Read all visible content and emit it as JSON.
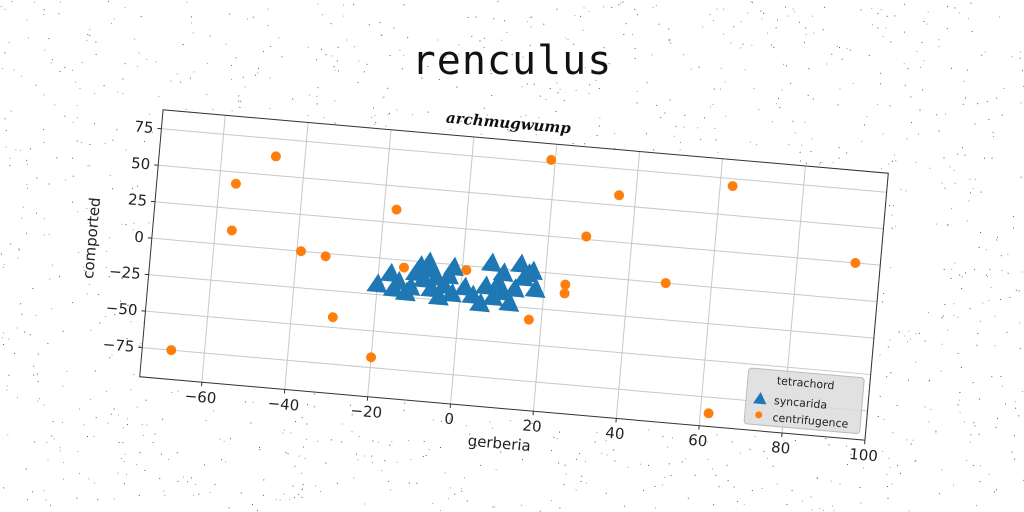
{
  "chart_data": {
    "type": "scatter",
    "title": "renculus",
    "subtitle": "archmugwump",
    "xlabel": "gerberia",
    "ylabel": "comported",
    "xlim": [
      -75,
      100
    ],
    "ylim": [
      -95,
      88
    ],
    "xticks": [
      -60,
      -40,
      -20,
      0,
      20,
      40,
      60,
      80,
      100
    ],
    "yticks": [
      75,
      50,
      25,
      0,
      -25,
      -50,
      -75
    ],
    "xtick_labels": [
      "−60",
      "−40",
      "−20",
      "0",
      "20",
      "40",
      "60",
      "80",
      "100"
    ],
    "ytick_labels": [
      "75",
      "50",
      "25",
      "0",
      "−25",
      "−50",
      "−75"
    ],
    "grid": true,
    "rotation_deg": 5,
    "legend": {
      "title": "tetrachord",
      "position": "bottom-right",
      "entries": [
        "syncarida",
        "centrifugence"
      ]
    },
    "series": [
      {
        "name": "syncarida",
        "marker": "triangle",
        "color": "#1f77b4",
        "points": [
          [
            -20,
            -18
          ],
          [
            -17,
            -10
          ],
          [
            -16,
            -20
          ],
          [
            -15,
            -15
          ],
          [
            -13,
            -22
          ],
          [
            -12,
            -18
          ],
          [
            -11,
            -8
          ],
          [
            -10,
            -3
          ],
          [
            -9,
            -12
          ],
          [
            -8,
            0
          ],
          [
            -7,
            -5
          ],
          [
            -7,
            -18
          ],
          [
            -6,
            -10
          ],
          [
            -5,
            -23
          ],
          [
            -4,
            -15
          ],
          [
            -3,
            -8
          ],
          [
            -2,
            -2
          ],
          [
            -2,
            -20
          ],
          [
            1,
            -15
          ],
          [
            3,
            -20
          ],
          [
            5,
            -25
          ],
          [
            6,
            -13
          ],
          [
            8,
            -20
          ],
          [
            9,
            -10
          ],
          [
            10,
            -3
          ],
          [
            10,
            -16
          ],
          [
            12,
            -23
          ],
          [
            13,
            -13
          ],
          [
            15,
            -5
          ],
          [
            16,
            -2
          ],
          [
            18,
            -12
          ],
          [
            7,
            3
          ],
          [
            14,
            4
          ],
          [
            17,
            0
          ]
        ]
      },
      {
        "name": "centrifugence",
        "marker": "circle",
        "color": "#ff7f0e",
        "points": [
          [
            -68,
            -75
          ],
          [
            -56,
            42
          ],
          [
            -56,
            10
          ],
          [
            -47,
            63
          ],
          [
            -39,
            0
          ],
          [
            -33,
            -2
          ],
          [
            -30,
            -43
          ],
          [
            -20,
            -68
          ],
          [
            -17,
            34
          ],
          [
            -14,
            -5
          ],
          [
            1,
            -3
          ],
          [
            17,
            -33
          ],
          [
            19,
            77
          ],
          [
            25,
            -7
          ],
          [
            25,
            -13
          ],
          [
            29,
            27
          ],
          [
            36,
            57
          ],
          [
            49,
            0
          ],
          [
            62,
            -86
          ],
          [
            63,
            70
          ],
          [
            94,
            25
          ]
        ]
      }
    ]
  }
}
